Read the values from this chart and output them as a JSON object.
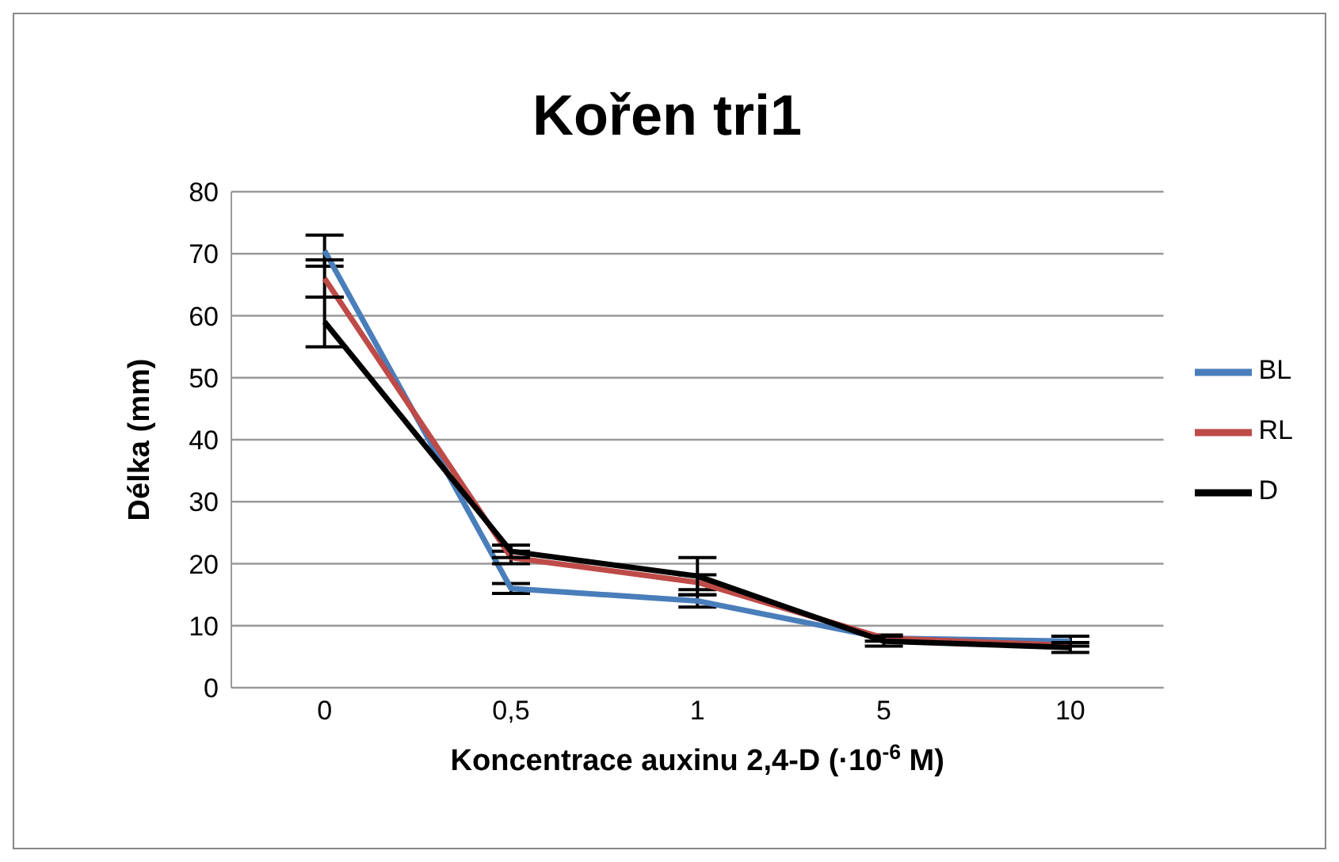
{
  "chart_data": {
    "type": "line",
    "title": "Kořen tri1",
    "xlabel": "Koncentrace auxinu 2,4-D (·10$^{-6}$ M)",
    "ylabel": "Délka (mm)",
    "categories": [
      "0",
      "0,5",
      "1",
      "5",
      "10"
    ],
    "series": [
      {
        "name": "BL",
        "color": "#4a7ebb",
        "values": [
          70.5,
          16,
          14,
          8,
          7.5
        ],
        "errors": [
          2.5,
          0.8,
          1,
          0.5,
          0.8
        ]
      },
      {
        "name": "RL",
        "color": "#be4b48",
        "values": [
          66,
          21,
          17,
          8,
          6.8
        ],
        "errors": [
          3,
          1,
          1.2,
          null,
          null
        ]
      },
      {
        "name": "D",
        "color": "#000000",
        "values": [
          59,
          22,
          18,
          7.5,
          6.5
        ],
        "errors": [
          4,
          1,
          3,
          0.8,
          0.8
        ]
      }
    ],
    "ylim": [
      0,
      80
    ],
    "yticks": [
      0,
      10,
      20,
      30,
      40,
      50,
      60,
      70,
      80
    ],
    "grid": "y",
    "legend": "right",
    "marker": "none",
    "line_style": "solid"
  }
}
